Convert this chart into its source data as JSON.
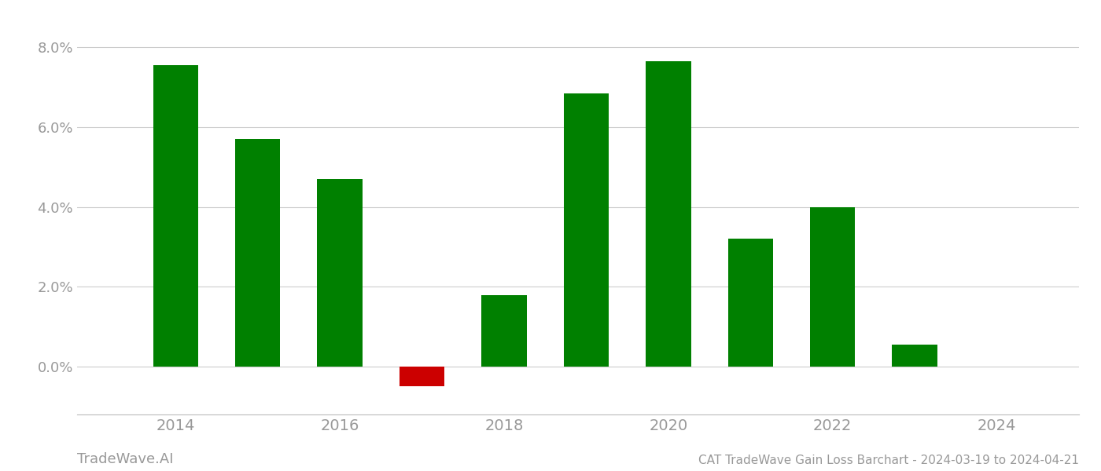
{
  "years": [
    2014,
    2015,
    2016,
    2017,
    2018,
    2019,
    2020,
    2021,
    2022,
    2023
  ],
  "values": [
    0.0755,
    0.057,
    0.047,
    -0.005,
    0.018,
    0.0685,
    0.0765,
    0.032,
    0.04,
    0.0055
  ],
  "bar_colors": [
    "#008000",
    "#008000",
    "#008000",
    "#cc0000",
    "#008000",
    "#008000",
    "#008000",
    "#008000",
    "#008000",
    "#008000"
  ],
  "title": "CAT TradeWave Gain Loss Barchart - 2024-03-19 to 2024-04-21",
  "watermark": "TradeWave.AI",
  "ylim_min": -0.012,
  "ylim_max": 0.086,
  "background_color": "#ffffff",
  "grid_color": "#cccccc",
  "bar_width": 0.55,
  "xlabel_fontsize": 14,
  "ylabel_fontsize": 13,
  "title_fontsize": 11,
  "watermark_fontsize": 13,
  "axis_label_color": "#999999",
  "xlim_left": 2012.8,
  "xlim_right": 2025.0,
  "xticks": [
    2014,
    2016,
    2018,
    2020,
    2022,
    2024
  ],
  "yticks": [
    0.0,
    0.02,
    0.04,
    0.06,
    0.08
  ]
}
